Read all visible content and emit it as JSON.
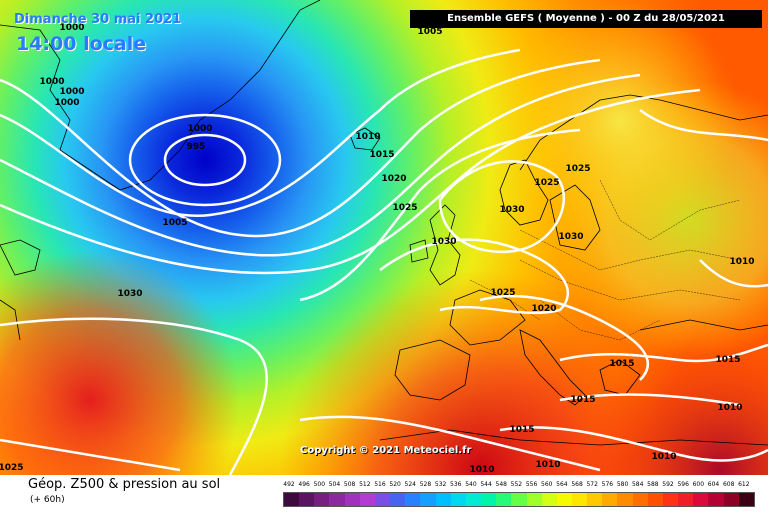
{
  "header": {
    "date": "Dimanche 30 mai 2021",
    "time": "14:00 locale",
    "run": "Ensemble GEFS  ( Moyenne )  -  00 Z du 28/05/2021"
  },
  "copyright": "Copyright © 2021 Meteociel.fr",
  "footer": {
    "title": "Géop. Z500 & pression au sol",
    "subtitle": "(+ 60h)"
  },
  "isobar_labels": [
    "1000",
    "1005",
    "1000",
    "1000",
    "1000",
    "1000",
    "995",
    "1005",
    "1010",
    "1015",
    "1020",
    "1025",
    "1030",
    "1030",
    "1025",
    "1030",
    "1025",
    "1030",
    "1025",
    "1020",
    "1010",
    "1015",
    "1015",
    "1015",
    "1010",
    "1015",
    "1010",
    "1010",
    "1025"
  ],
  "scale": {
    "labels": [
      "492",
      "496",
      "500",
      "504",
      "508",
      "512",
      "516",
      "520",
      "524",
      "528",
      "532",
      "536",
      "540",
      "544",
      "548",
      "552",
      "556",
      "560",
      "564",
      "568",
      "572",
      "576",
      "580",
      "584",
      "588",
      "592",
      "596",
      "600",
      "604",
      "608",
      "612"
    ],
    "colors": [
      "#3d0a3d",
      "#5a1460",
      "#781e82",
      "#8c28a0",
      "#a032be",
      "#b43cd2",
      "#7850e6",
      "#4664f0",
      "#2882ff",
      "#14a0ff",
      "#00beff",
      "#00d7f0",
      "#00ebd2",
      "#00f5aa",
      "#28fa78",
      "#64ff46",
      "#a0ff28",
      "#d2ff14",
      "#f5fa00",
      "#ffe600",
      "#ffc800",
      "#ffaa00",
      "#ff8c00",
      "#ff6e00",
      "#ff5000",
      "#ff3214",
      "#f01e28",
      "#dc0a3c",
      "#b40032",
      "#8c0028",
      "#3c0014"
    ]
  }
}
